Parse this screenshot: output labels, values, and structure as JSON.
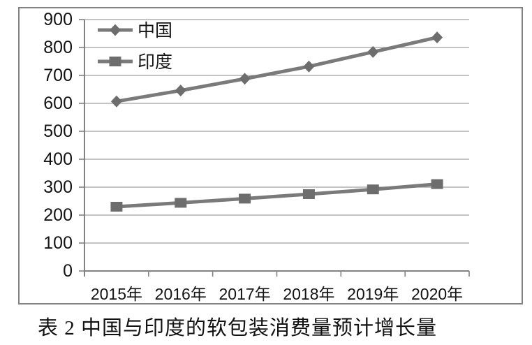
{
  "caption": "表 2 中国与印度的软包装消费量预计增长量",
  "colors": {
    "series_line": "#7a7a7a",
    "series_marker": "#6d6d6d",
    "grid": "#a0a0a0",
    "axis": "#828282",
    "frame": "#828282",
    "text": "#141414"
  },
  "chart_data": {
    "type": "line",
    "title": "",
    "xlabel": "",
    "ylabel": "",
    "categories": [
      "2015年",
      "2016年",
      "2017年",
      "2018年",
      "2019年",
      "2020年"
    ],
    "series": [
      {
        "name": "中国",
        "marker": "diamond",
        "values": [
          607,
          646,
          688,
          732,
          784,
          836
        ]
      },
      {
        "name": "印度",
        "marker": "square",
        "values": [
          230,
          244,
          259,
          275,
          292,
          311
        ]
      }
    ],
    "ylim": [
      0,
      900
    ],
    "yticks": [
      0,
      100,
      200,
      300,
      400,
      500,
      600,
      700,
      800,
      900
    ],
    "grid": true,
    "legend_position": "top-left-inside"
  }
}
